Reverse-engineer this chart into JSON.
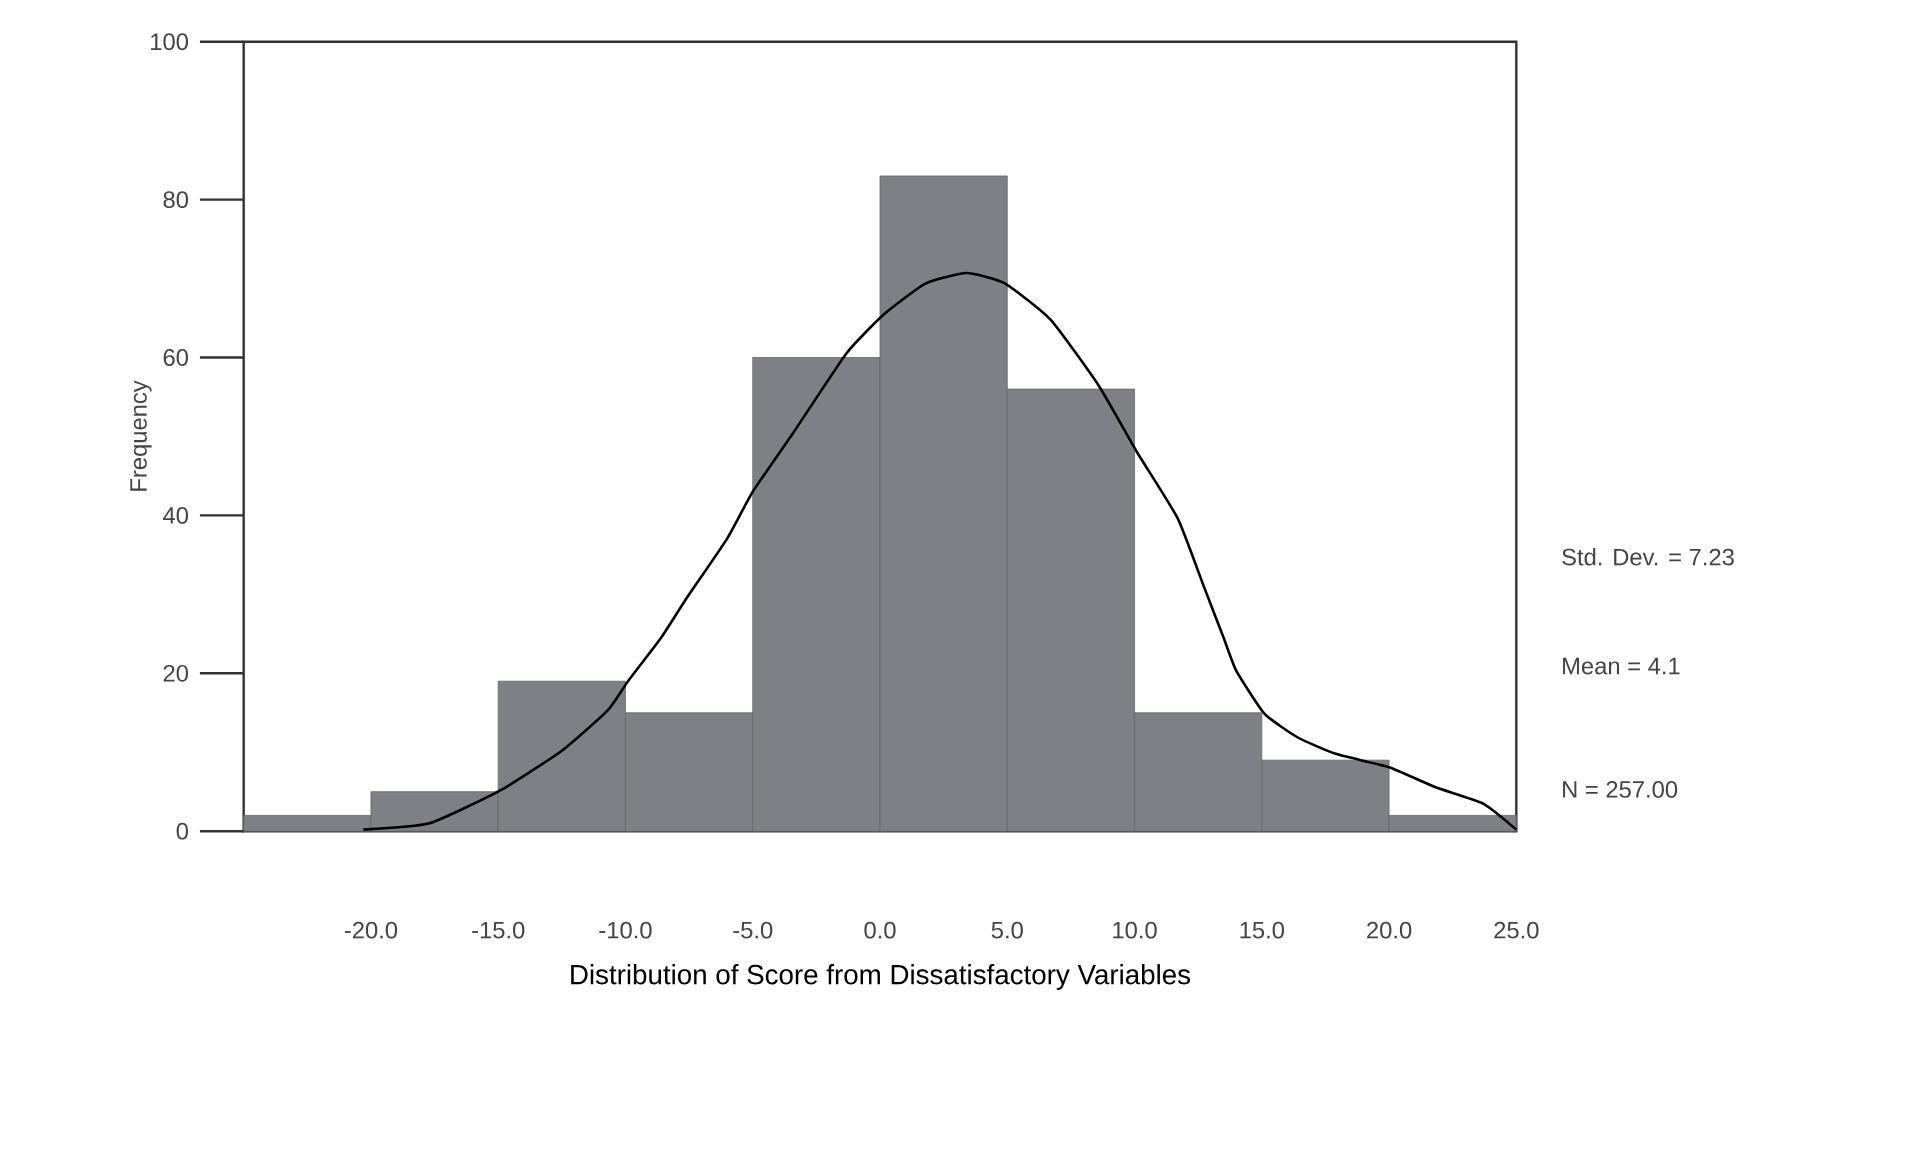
{
  "chart_data": {
    "type": "histogram",
    "xlabel": "Distribution of Score from Dissatisfactory Variables",
    "ylabel": "Frequency",
    "bins": [
      -25,
      -20,
      -15,
      -10,
      -5,
      0,
      5,
      10,
      15,
      20,
      25
    ],
    "values": [
      2,
      5,
      19,
      15,
      60,
      83,
      56,
      15,
      9,
      2
    ],
    "color": "#7f7f86",
    "xlim": [
      -25,
      25
    ],
    "ylim": [
      0,
      100
    ],
    "xticks": [
      {
        "value": -20,
        "label": "-20.0"
      },
      {
        "value": -15,
        "label": "-15.0"
      },
      {
        "value": -10,
        "label": "-10.0"
      },
      {
        "value": -5,
        "label": "-5.0"
      },
      {
        "value": 0,
        "label": "0.0"
      },
      {
        "value": 5,
        "label": "5.0"
      },
      {
        "value": 10,
        "label": "10.0"
      },
      {
        "value": 15,
        "label": "15.0"
      },
      {
        "value": 20,
        "label": "20.0"
      },
      {
        "value": 25,
        "label": "25.0"
      }
    ],
    "yticks": [
      0,
      20,
      40,
      60,
      80,
      100
    ],
    "series": [
      {
        "type": "line",
        "color": "#000000",
        "x": [
          -20.3,
          -17.7,
          -14.9,
          -12.5,
          -10.7,
          -9.9,
          -8.6,
          -7.6,
          -6.0,
          -5.0,
          -3.4,
          -1.3,
          0.2,
          1.8,
          3.4,
          4.9,
          6.7,
          8.6,
          10.1,
          11.7,
          12.7,
          13.5,
          14.0,
          15.1,
          16.4,
          17.9,
          20.0,
          21.8,
          23.7,
          25.0
        ],
        "values": [
          0.2,
          1.0,
          5.2,
          10.2,
          15.3,
          19.0,
          24.5,
          29.5,
          37.1,
          43.0,
          50.5,
          60.6,
          65.6,
          69.4,
          70.7,
          69.4,
          64.8,
          56.4,
          48.0,
          39.6,
          31.2,
          24.5,
          20.3,
          14.9,
          11.9,
          9.8,
          8.1,
          5.6,
          3.5,
          0.2
        ]
      }
    ],
    "annotations": [
      "Std. Dev. = 7.23",
      "Mean = 4.1",
      "N = 257.00"
    ]
  }
}
